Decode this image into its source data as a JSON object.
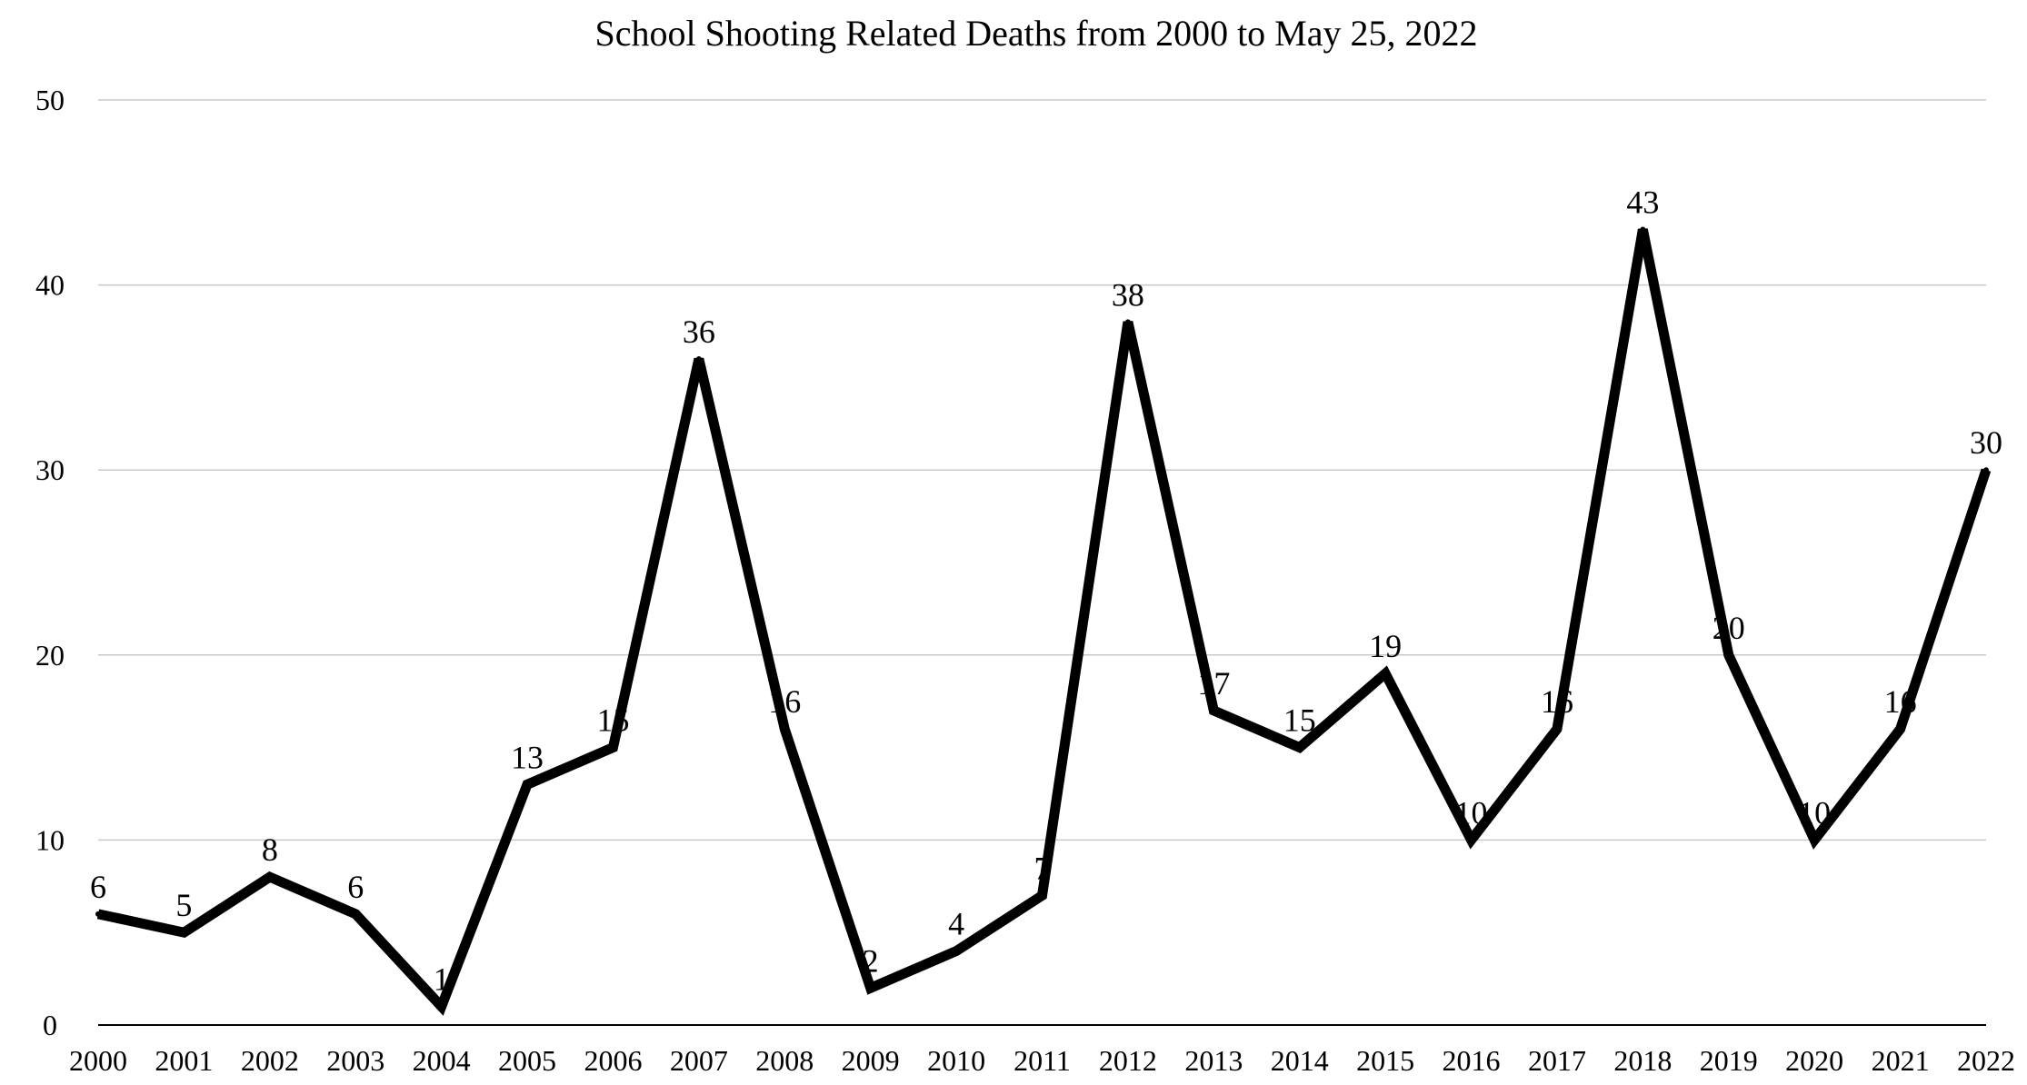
{
  "chart_data": {
    "type": "line",
    "title": "School Shooting Related Deaths from 2000 to May 25, 2022",
    "xlabel": "",
    "ylabel": "",
    "categories": [
      "2000",
      "2001",
      "2002",
      "2003",
      "2004",
      "2005",
      "2006",
      "2007",
      "2008",
      "2009",
      "2010",
      "2011",
      "2012",
      "2013",
      "2014",
      "2015",
      "2016",
      "2017",
      "2018",
      "2019",
      "2020",
      "2021",
      "2022"
    ],
    "series": [
      {
        "values": [
          6,
          5,
          8,
          6,
          1,
          13,
          15,
          36,
          16,
          2,
          4,
          7,
          38,
          17,
          15,
          19,
          10,
          16,
          43,
          20,
          10,
          16,
          30
        ]
      }
    ],
    "y_ticks": [
      "0",
      "10",
      "20",
      "30",
      "40",
      "50"
    ],
    "ylim": [
      0,
      50
    ],
    "grid": true,
    "legend": "none",
    "data_labels": true,
    "line_color": "#000000",
    "grid_color": "#c8c8c8"
  }
}
